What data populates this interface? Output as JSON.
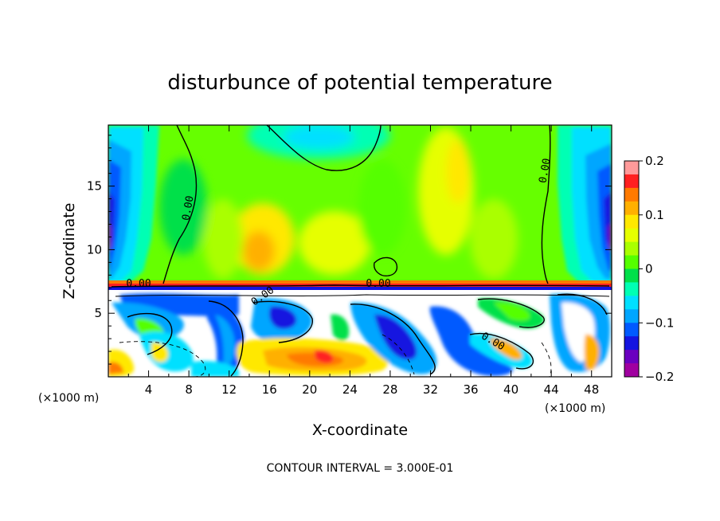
{
  "chart_data": {
    "type": "heatmap",
    "title": "disturbunce of potential temperature",
    "xlabel": "X-coordinate",
    "ylabel": "Z-coordinate",
    "x_unit_note": "(×1000 m)",
    "xlim": [
      0,
      50
    ],
    "ylim": [
      0,
      19.8
    ],
    "x_ticks": [
      4,
      8,
      12,
      16,
      20,
      24,
      28,
      32,
      36,
      40,
      44,
      48
    ],
    "y_ticks": [
      5,
      10,
      15
    ],
    "colorbar": {
      "range": [
        -0.2,
        0.2
      ],
      "tick_values": [
        0.2,
        0.1,
        0,
        -0.1,
        -0.2
      ],
      "tick_labels": [
        "0.2",
        "0.1",
        "0",
        "−0.1",
        "−0.2"
      ],
      "colors": [
        "#ff9a9a",
        "#ff2020",
        "#ff7a00",
        "#ffb000",
        "#ffe800",
        "#e6ff00",
        "#aaff00",
        "#55ff00",
        "#00e04a",
        "#00ffb4",
        "#00e0ff",
        "#00a6ff",
        "#005aff",
        "#1414e0",
        "#6a00c0",
        "#a000a0"
      ]
    },
    "contour_labels": [
      "0.00",
      "0.00",
      "0.00",
      "0.00",
      "0.00",
      "0.00"
    ],
    "footer": "CONTOUR INTERVAL = 3.000E-01"
  }
}
